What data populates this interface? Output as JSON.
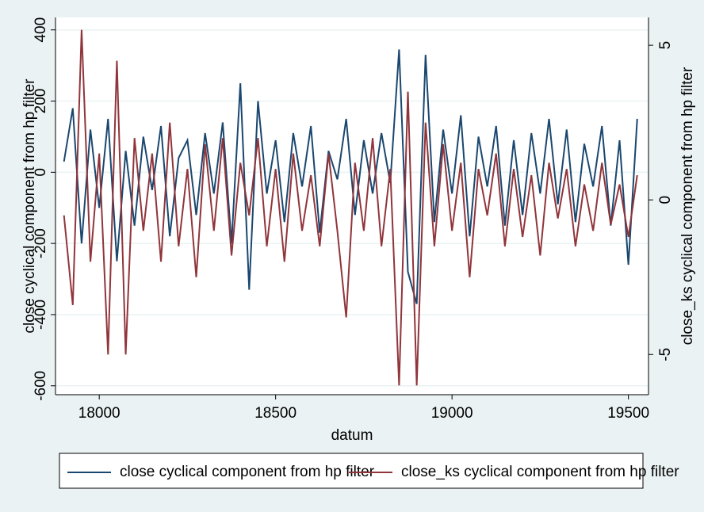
{
  "chart_data": {
    "type": "line",
    "x_label": "datum",
    "y_label": "close cyclical component from hp filter",
    "y2_label": "close_ks cyclical component from hp filter",
    "x": [
      17900,
      17925,
      17950,
      17975,
      18000,
      18025,
      18050,
      18075,
      18100,
      18125,
      18150,
      18175,
      18200,
      18225,
      18250,
      18275,
      18300,
      18325,
      18350,
      18375,
      18400,
      18425,
      18450,
      18475,
      18500,
      18525,
      18550,
      18575,
      18600,
      18625,
      18650,
      18675,
      18700,
      18725,
      18750,
      18775,
      18800,
      18825,
      18850,
      18875,
      18900,
      18925,
      18950,
      18975,
      19000,
      19025,
      19050,
      19075,
      19100,
      19125,
      19150,
      19175,
      19200,
      19225,
      19250,
      19275,
      19300,
      19325,
      19350,
      19375,
      19400,
      19425,
      19450,
      19475,
      19500,
      19525
    ],
    "series": [
      {
        "name": "close cyclical component from hp filter",
        "color": "#1a476f",
        "values": [
          30,
          180,
          -200,
          120,
          -100,
          150,
          -250,
          60,
          -150,
          100,
          -50,
          130,
          -180,
          40,
          90,
          -120,
          110,
          -60,
          140,
          -200,
          250,
          -330,
          200,
          -60,
          90,
          -140,
          110,
          -40,
          130,
          -170,
          60,
          -20,
          150,
          -120,
          90,
          -60,
          110,
          -30,
          345,
          -280,
          -370,
          330,
          -140,
          120,
          -60,
          160,
          -180,
          100,
          -40,
          130,
          -150,
          90,
          -120,
          110,
          -60,
          150,
          -90,
          120,
          -140,
          80,
          -40,
          130,
          -150,
          90,
          -260,
          150
        ]
      },
      {
        "name": "close_ks cyclical component from hp filter",
        "color": "#90353b",
        "axis": "y2",
        "values": [
          -0.5,
          -3.4,
          5.5,
          -2,
          1.5,
          -5,
          4.5,
          -5,
          2,
          -1,
          1.5,
          -2,
          2.5,
          -1.5,
          1,
          -2.5,
          1.8,
          -1,
          2,
          -1.8,
          1.2,
          -0.5,
          2,
          -1.5,
          1,
          -2,
          1.5,
          -1,
          0.8,
          -1.5,
          1.5,
          -1,
          -3.8,
          1.2,
          -1,
          2,
          -1.5,
          1,
          -6,
          3.5,
          -6,
          2.5,
          -1.5,
          1.8,
          -1,
          1.2,
          -2.5,
          1,
          -0.5,
          1.5,
          -1.5,
          1,
          -1.2,
          0.8,
          -1.8,
          1.2,
          -0.6,
          1,
          -1.5,
          0.5,
          -1,
          1.2,
          -0.8,
          0.5,
          -1.2,
          0.8
        ]
      }
    ],
    "xlim": [
      17876,
      19557
    ],
    "xticks": [
      18000,
      18500,
      19000,
      19500
    ],
    "ylim": [
      -625,
      435
    ],
    "yticks": [
      -600,
      -400,
      -200,
      0,
      200,
      400
    ],
    "y2lim": [
      -6.3,
      5.9
    ],
    "y2ticks": [
      -5,
      0,
      5
    ],
    "grid": true,
    "legend": "bottom"
  }
}
